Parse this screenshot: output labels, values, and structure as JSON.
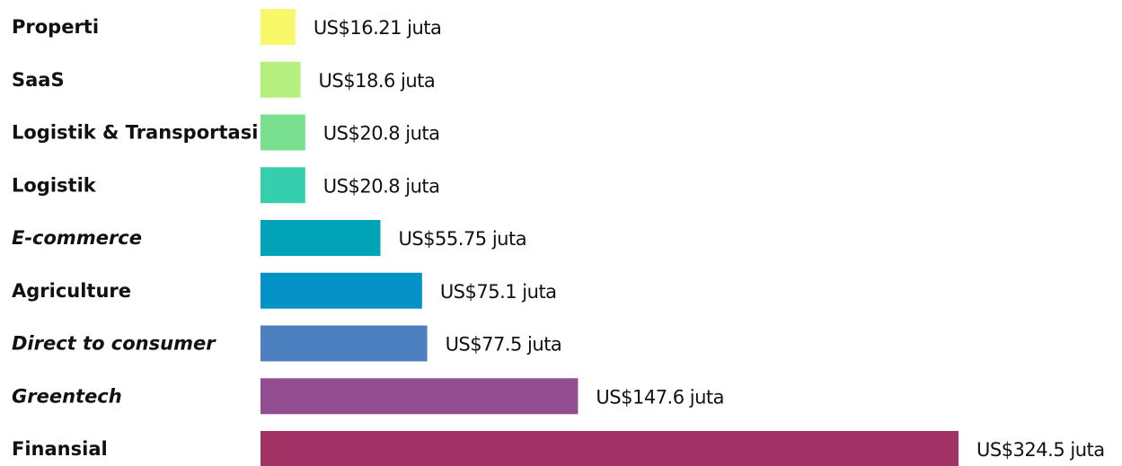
{
  "chart_data": {
    "type": "bar",
    "categories": [
      "Properti",
      "SaaS",
      "Logistik & Transportasi",
      "Logistik",
      "E-commerce",
      "Agriculture",
      "Direct to consumer",
      "Greentech",
      "Finansial"
    ],
    "values": [
      16.21,
      18.6,
      20.8,
      20.8,
      55.75,
      75.1,
      77.5,
      147.6,
      324.5
    ],
    "value_labels": [
      "US$16.21 juta",
      "US$18.6 juta",
      "US$20.8 juta",
      "US$20.8 juta",
      "US$55.75 juta",
      "US$75.1 juta",
      "US$77.5 juta",
      "US$147.6 juta",
      "US$324.5 juta"
    ],
    "colors": [
      "#f8f86a",
      "#b5f07f",
      "#78e08f",
      "#36cfae",
      "#00a3b8",
      "#0592c6",
      "#4b7fc0",
      "#924e91",
      "#a03265"
    ]
  }
}
